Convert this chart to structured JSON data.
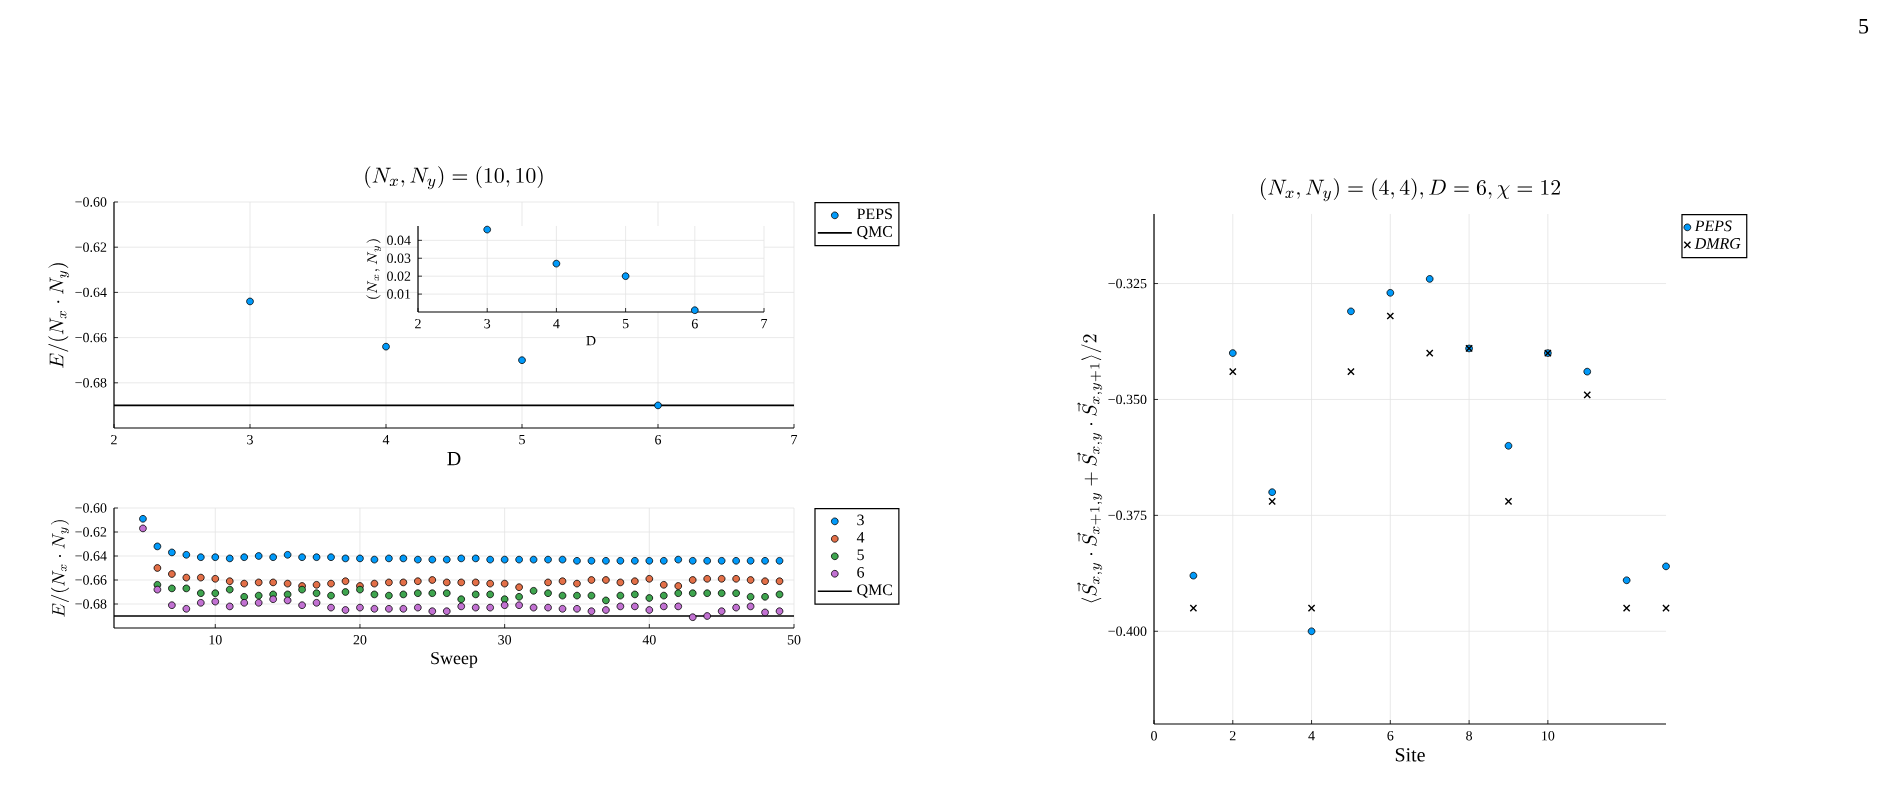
{
  "chart_data": [
    {
      "type": "scatter",
      "title": "(N_x, N_y) = (10, 10)",
      "xlabel": "D",
      "ylabel": "E/(N_x \\cdot N_y)",
      "x": [
        3,
        4,
        5,
        6
      ],
      "series": [
        {
          "name": "PEPS",
          "color": "#009afa",
          "values": [
            -0.644,
            -0.664,
            -0.67,
            -0.69
          ]
        }
      ],
      "xlim": [
        2,
        7
      ],
      "ylim": [
        -0.7,
        -0.6
      ],
      "xticks": [
        2,
        3,
        4,
        5,
        6,
        7
      ],
      "yticks": [
        {
          "value": -0.6,
          "label": "−0.60"
        },
        {
          "value": -0.62,
          "label": "−0.62"
        },
        {
          "value": -0.64,
          "label": "−0.64"
        },
        {
          "value": -0.66,
          "label": "−0.66"
        },
        {
          "value": -0.68,
          "label": "−0.68"
        }
      ],
      "ref_lines": [
        {
          "axis": "y",
          "value": -0.69,
          "label": "QMC",
          "color": "#000000"
        }
      ],
      "grid": true,
      "legend": "top right",
      "marker": "circle"
    },
    {
      "type": "scatter",
      "xlabel": "D",
      "ylabel": "(N_x, N_y)",
      "x": [
        3,
        4,
        5,
        6
      ],
      "series": [
        {
          "color": "#009afa",
          "values": [
            0.046,
            0.027,
            0.02,
            0.001
          ]
        }
      ],
      "xlim": [
        2,
        7
      ],
      "ylim": [
        0,
        0.048
      ],
      "xticks": [
        2,
        3,
        4,
        5,
        6,
        7
      ],
      "yticks": [
        0.01,
        0.02,
        0.03,
        0.04
      ],
      "grid": true,
      "marker": "circle"
    },
    {
      "type": "scatter",
      "xlabel": "Sweep",
      "ylabel": "E/(N_x \\cdot N_y)",
      "x": [
        5,
        6,
        7,
        8,
        9,
        10,
        11,
        12,
        13,
        14,
        15,
        16,
        17,
        18,
        19,
        20,
        21,
        22,
        23,
        24,
        25,
        26,
        27,
        28,
        29,
        30,
        31,
        32,
        33,
        34,
        35,
        36,
        37,
        38,
        39,
        40,
        41,
        42,
        43,
        44,
        45,
        46,
        47,
        48,
        49
      ],
      "series": [
        {
          "name": "3",
          "color": "#009afa",
          "values": [
            -0.609,
            -0.632,
            -0.637,
            -0.639,
            -0.641,
            -0.641,
            -0.642,
            -0.641,
            -0.64,
            -0.641,
            -0.639,
            -0.641,
            -0.641,
            -0.641,
            -0.642,
            -0.642,
            -0.643,
            -0.642,
            -0.642,
            -0.643,
            -0.643,
            -0.643,
            -0.642,
            -0.642,
            -0.643,
            -0.643,
            -0.643,
            -0.643,
            -0.643,
            -0.643,
            -0.644,
            -0.644,
            -0.644,
            -0.644,
            -0.644,
            -0.644,
            -0.644,
            -0.643,
            -0.644,
            -0.644,
            -0.644,
            -0.644,
            -0.644,
            -0.644,
            -0.644
          ]
        },
        {
          "name": "4",
          "color": "#e36f47",
          "values": [
            null,
            -0.65,
            -0.655,
            -0.658,
            -0.658,
            -0.659,
            -0.661,
            -0.663,
            -0.662,
            -0.662,
            -0.663,
            -0.665,
            -0.664,
            -0.663,
            -0.661,
            -0.665,
            -0.663,
            -0.662,
            -0.662,
            -0.661,
            -0.66,
            -0.662,
            -0.662,
            -0.662,
            -0.663,
            -0.663,
            -0.666,
            null,
            -0.662,
            -0.661,
            -0.663,
            -0.66,
            -0.66,
            -0.662,
            -0.661,
            -0.659,
            -0.664,
            -0.665,
            -0.66,
            -0.659,
            -0.659,
            -0.659,
            -0.66,
            -0.661,
            -0.661
          ]
        },
        {
          "name": "5",
          "color": "#3ea44e",
          "values": [
            null,
            -0.664,
            -0.667,
            -0.667,
            -0.671,
            -0.671,
            -0.668,
            -0.674,
            -0.673,
            -0.672,
            -0.672,
            -0.668,
            -0.671,
            -0.673,
            -0.67,
            -0.668,
            -0.672,
            -0.673,
            -0.672,
            -0.671,
            -0.671,
            -0.671,
            -0.676,
            -0.672,
            -0.672,
            -0.676,
            -0.674,
            -0.669,
            -0.671,
            -0.673,
            -0.673,
            -0.673,
            -0.677,
            -0.673,
            -0.672,
            -0.675,
            -0.673,
            -0.671,
            -0.671,
            -0.671,
            -0.671,
            -0.671,
            -0.674,
            -0.674,
            -0.672
          ]
        },
        {
          "name": "6",
          "color": "#c271d2",
          "values": [
            -0.617,
            -0.668,
            -0.681,
            -0.684,
            -0.679,
            -0.678,
            -0.682,
            -0.679,
            -0.679,
            -0.676,
            -0.677,
            -0.681,
            -0.679,
            -0.683,
            -0.685,
            -0.683,
            -0.684,
            -0.684,
            -0.684,
            -0.683,
            -0.686,
            -0.686,
            -0.682,
            -0.683,
            -0.683,
            -0.681,
            -0.681,
            -0.683,
            -0.683,
            -0.684,
            -0.684,
            -0.686,
            -0.685,
            -0.682,
            -0.682,
            -0.685,
            -0.682,
            -0.682,
            -0.691,
            -0.69,
            -0.686,
            -0.683,
            -0.682,
            -0.687,
            -0.686
          ]
        }
      ],
      "xlim": [
        3,
        50
      ],
      "ylim": [
        -0.7,
        -0.6
      ],
      "xticks": [
        10,
        20,
        30,
        40,
        50
      ],
      "yticks": [
        {
          "value": -0.6,
          "label": "−0.60"
        },
        {
          "value": -0.62,
          "label": "−0.62"
        },
        {
          "value": -0.64,
          "label": "−0.64"
        },
        {
          "value": -0.66,
          "label": "−0.66"
        },
        {
          "value": -0.68,
          "label": "−0.68"
        }
      ],
      "ref_lines": [
        {
          "axis": "y",
          "value": -0.69,
          "label": "QMC",
          "color": "#000000"
        }
      ],
      "grid": true,
      "legend": "top right",
      "marker": "circle"
    },
    {
      "type": "scatter",
      "title": "(N_x, N_y) = (4, 4), D = 6, \\chi = 12",
      "xlabel": "Site",
      "ylabel": "\\langle \\vec{S}_{x,y} \\cdot \\vec{S}_{x+1,y} + \\vec{S}_{x,y} \\cdot \\vec{S}_{x,y+1} \\rangle / 2",
      "x": [
        1,
        2,
        3,
        4,
        5,
        6,
        7,
        8,
        9,
        10,
        11,
        12,
        13
      ],
      "series": [
        {
          "name": "PEPS",
          "color": "#009afa",
          "marker": "circle",
          "values": [
            -0.388,
            -0.34,
            -0.37,
            -0.4,
            -0.331,
            -0.327,
            -0.324,
            -0.339,
            -0.36,
            -0.34,
            -0.344,
            -0.389,
            -0.386
          ]
        },
        {
          "name": "DMRG",
          "color": "#000000",
          "marker": "cross",
          "values": [
            -0.395,
            -0.344,
            -0.372,
            -0.395,
            -0.344,
            -0.332,
            -0.34,
            -0.339,
            -0.372,
            -0.34,
            -0.349,
            -0.395,
            -0.395
          ]
        }
      ],
      "xlim": [
        0,
        13
      ],
      "ylim": [
        -0.42,
        -0.31
      ],
      "xticks": [
        0,
        2,
        4,
        6,
        8,
        10
      ],
      "yticks": [
        {
          "value": -0.325,
          "label": "−0.325"
        },
        {
          "value": -0.35,
          "label": "−0.350"
        },
        {
          "value": -0.375,
          "label": "−0.375"
        },
        {
          "value": -0.4,
          "label": "−0.400"
        }
      ],
      "grid": true,
      "legend": "top right",
      "annotations": [
        "5"
      ]
    }
  ]
}
